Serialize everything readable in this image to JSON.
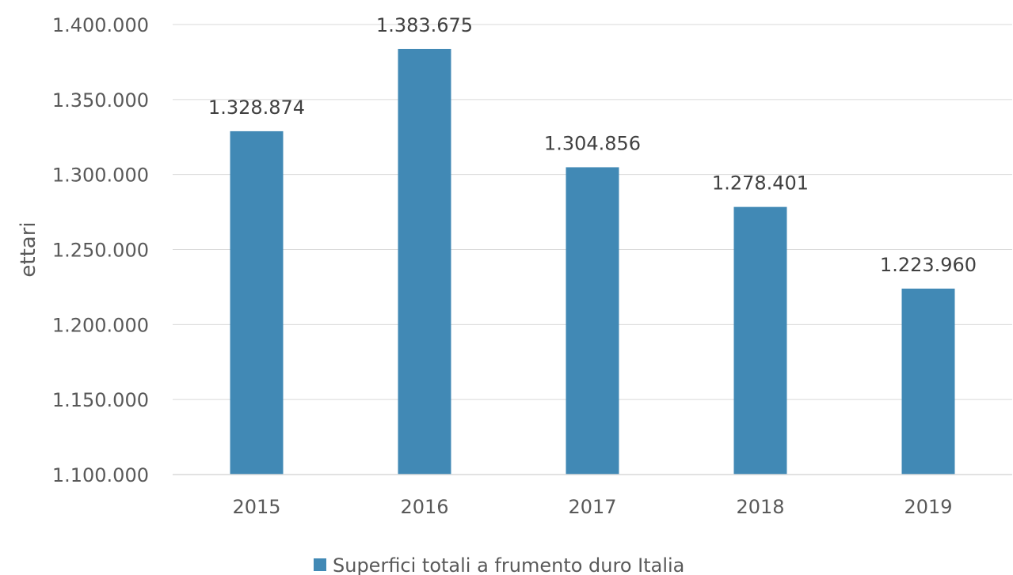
{
  "chart_data": {
    "type": "bar",
    "title": "",
    "xlabel": "",
    "ylabel": "ettari",
    "categories": [
      "2015",
      "2016",
      "2017",
      "2018",
      "2019"
    ],
    "series": [
      {
        "name": "Superfici totali a frumento duro Italia",
        "values": [
          1328874,
          1383675,
          1304856,
          1278401,
          1223960
        ],
        "value_labels": [
          "1.328.874",
          "1.383.675",
          "1.304.856",
          "1.278.401",
          "1.223.960"
        ],
        "color": "#4189b5"
      }
    ],
    "ylim": [
      1100000,
      1400000
    ],
    "yticks": [
      1100000,
      1150000,
      1200000,
      1250000,
      1300000,
      1350000,
      1400000
    ],
    "ytick_labels": [
      "1.100.000",
      "1.150.000",
      "1.200.000",
      "1.250.000",
      "1.300.000",
      "1.350.000",
      "1.400.000"
    ],
    "grid": true,
    "legend_position": "bottom-center"
  }
}
